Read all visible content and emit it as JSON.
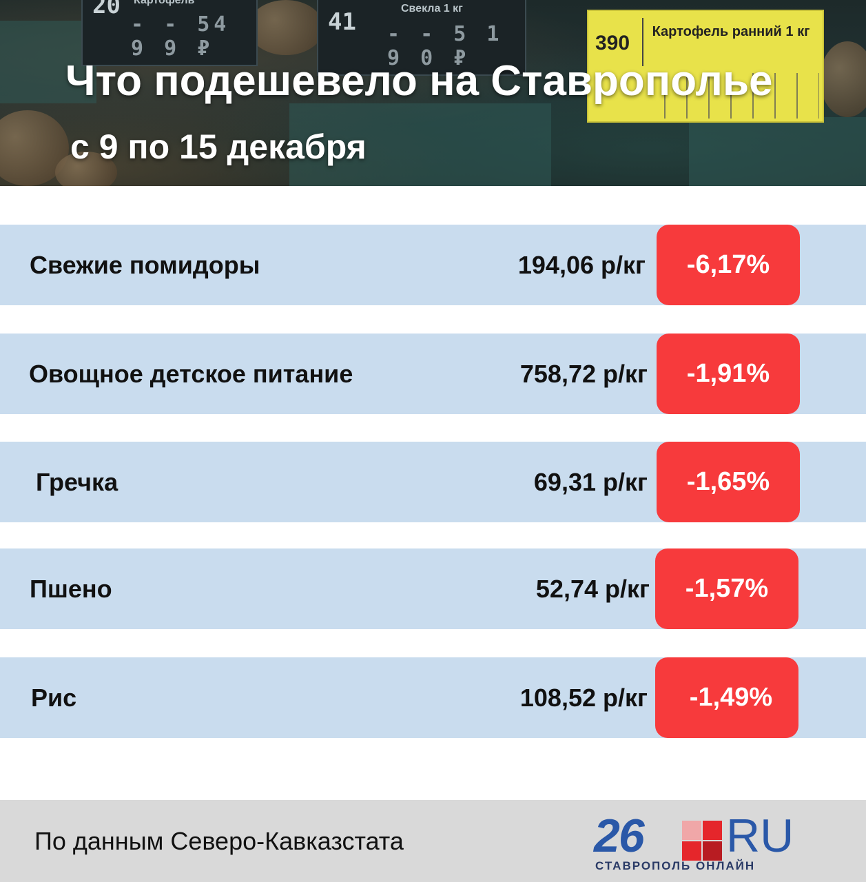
{
  "header": {
    "title": "Что подешевело на Ставрополье",
    "subtitle": "с 9 по 15 декабря",
    "photo_tags": {
      "tag1": {
        "number": "20",
        "label": "Картофель",
        "price": "- - 54 9 9 ₽"
      },
      "tag2": {
        "number": "41",
        "label": "Свекла 1 кг",
        "price": "- - 5 1 9 0 ₽"
      },
      "tag3": {
        "number": "390",
        "label": "Картофель ранний 1 кг"
      }
    }
  },
  "rows": [
    {
      "name": "Свежие помидоры",
      "price": "194,06 р/кг",
      "change": "-6,17%"
    },
    {
      "name": "Овощное детское питание",
      "price": "758,72 р/кг",
      "change": "-1,91%"
    },
    {
      "name": "Гречка",
      "price": "69,31 р/кг",
      "change": "-1,65%"
    },
    {
      "name": "Пшено",
      "price": "52,74 р/кг",
      "change": "-1,57%"
    },
    {
      "name": "Рис",
      "price": "108,52 р/кг",
      "change": "-1,49%"
    }
  ],
  "footer": {
    "source": "По данным Северо-Кавказстата",
    "logo": {
      "digits": "26",
      "suffix": "RU",
      "city": "СТАВРОПОЛЬ ОНЛАЙН"
    }
  },
  "colors": {
    "row_bg": "#c9dcee",
    "badge_bg": "#f73a3c",
    "footer_bg": "#d9d9d9",
    "logo_blue": "#2a58a8"
  }
}
